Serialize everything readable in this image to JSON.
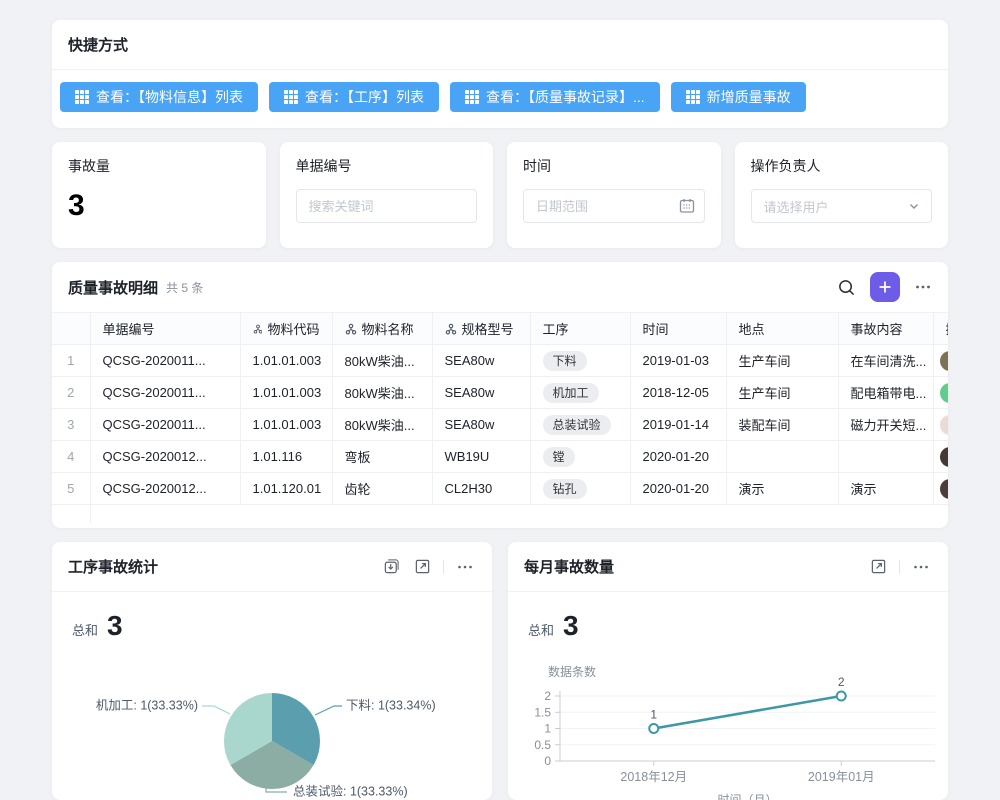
{
  "shortcuts": {
    "title": "快捷方式",
    "buttons": [
      {
        "label": "查看：【物料信息】列表"
      },
      {
        "label": "查看：【工序】列表"
      },
      {
        "label": "查看：【质量事故记录】..."
      },
      {
        "label": "新增质量事故"
      }
    ],
    "button_color": "#4aa4f6"
  },
  "filters": {
    "accident_count": {
      "label": "事故量",
      "value": "3"
    },
    "doc_no": {
      "label": "单据编号",
      "placeholder": "搜索关键词"
    },
    "time": {
      "label": "时间",
      "placeholder": "日期范围"
    },
    "operator": {
      "label": "操作负责人",
      "placeholder": "请选择用户"
    }
  },
  "table": {
    "title": "质量事故明细",
    "count_text": "共 5 条",
    "add_button_color": "#6c5ce7",
    "columns": [
      {
        "label": ""
      },
      {
        "label": "单据编号"
      },
      {
        "label": "物料代码",
        "relation_icon": true
      },
      {
        "label": "物料名称",
        "relation_icon": true
      },
      {
        "label": "规格型号",
        "relation_icon": true
      },
      {
        "label": "工序"
      },
      {
        "label": "时间"
      },
      {
        "label": "地点"
      },
      {
        "label": "事故内容"
      },
      {
        "label": "操作负责人"
      }
    ],
    "rows": [
      {
        "no": "1",
        "doc_no": "QCSG-2020011...",
        "material_code": "1.01.01.003",
        "material_name": "80kW柴油...",
        "spec": "SEA80w",
        "process": "下料",
        "date": "2019-01-03",
        "location": "生产车间",
        "content": "在车间清洗...",
        "avatar_color": "#7d7257"
      },
      {
        "no": "2",
        "doc_no": "QCSG-2020011...",
        "material_code": "1.01.01.003",
        "material_name": "80kW柴油...",
        "spec": "SEA80w",
        "process": "机加工",
        "date": "2018-12-05",
        "location": "生产车间",
        "content": "配电箱带电...",
        "avatar_color": "#5ecd8e"
      },
      {
        "no": "3",
        "doc_no": "QCSG-2020011...",
        "material_code": "1.01.01.003",
        "material_name": "80kW柴油...",
        "spec": "SEA80w",
        "process": "总装试验",
        "date": "2019-01-14",
        "location": "装配车间",
        "content": "磁力开关短...",
        "avatar_color": "#e9dcd6"
      },
      {
        "no": "4",
        "doc_no": "QCSG-2020012...",
        "material_code": "1.01.116",
        "material_name": "弯板",
        "spec": "WB19U",
        "process": "镗",
        "date": "2020-01-20",
        "location": "",
        "content": "",
        "avatar_color": "#433a35"
      },
      {
        "no": "5",
        "doc_no": "QCSG-2020012...",
        "material_code": "1.01.120.01",
        "material_name": "齿轮",
        "spec": "CL2H30",
        "process": "钻孔",
        "date": "2020-01-20",
        "location": "演示",
        "content": "演示",
        "avatar_color": "#4e3c3a"
      }
    ]
  },
  "chart_data": [
    {
      "type": "pie",
      "title": "工序事故统计",
      "total_label": "总和",
      "total": "3",
      "legend_position": "labels-with-leader-lines",
      "slices": [
        {
          "name": "下料",
          "value": 1,
          "pct": "33.34%",
          "label": "下料: 1(33.34%)",
          "color": "#5b9fae"
        },
        {
          "name": "总装试验",
          "value": 1,
          "pct": "33.33%",
          "label": "总装试验: 1(33.33%)",
          "color": "#8bada3"
        },
        {
          "name": "机加工",
          "value": 1,
          "pct": "33.33%",
          "label": "机加工: 1(33.33%)",
          "color": "#a9d7ce"
        }
      ]
    },
    {
      "type": "line",
      "title": "每月事故数量",
      "total_label": "总和",
      "total": "3",
      "ylabel": "数据条数",
      "xlabel": "时间（月）",
      "x": [
        "2018年12月",
        "2019年01月"
      ],
      "values": [
        1,
        2
      ],
      "data_labels": [
        "1",
        "2"
      ],
      "yticks": [
        "0",
        "0.5",
        "1",
        "1.5",
        "2"
      ],
      "ylim": [
        0,
        2
      ],
      "grid": true,
      "line_color": "#3d98a6"
    }
  ]
}
